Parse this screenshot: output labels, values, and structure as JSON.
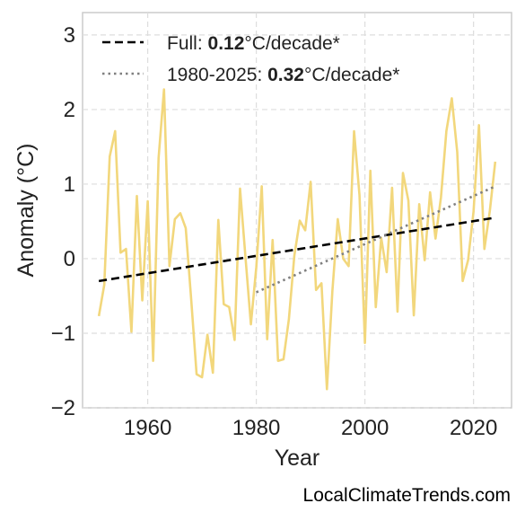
{
  "credit": "LocalClimateTrends.com",
  "chart_data": {
    "type": "line",
    "title": "",
    "xlabel": "Year",
    "ylabel": "Anomaly (°C)",
    "xlim": [
      1948,
      2027
    ],
    "ylim": [
      -2,
      3.3
    ],
    "xticks": [
      1960,
      1980,
      2000,
      2020
    ],
    "yticks": [
      -2,
      -1,
      0,
      1,
      2,
      3
    ],
    "grid": true,
    "legend_position": "top-left",
    "colors": {
      "anomaly": "#f2d77c",
      "full_trend": "#000000",
      "recent_trend": "#808080"
    },
    "series": [
      {
        "type": "line",
        "x": [
          1951,
          1952,
          1953,
          1954,
          1955,
          1956,
          1957,
          1958,
          1959,
          1960,
          1961,
          1962,
          1963,
          1964,
          1965,
          1966,
          1967,
          1968,
          1969,
          1970,
          1971,
          1972,
          1973,
          1974,
          1975,
          1976,
          1977,
          1978,
          1979,
          1980,
          1981,
          1982,
          1983,
          1984,
          1985,
          1986,
          1987,
          1988,
          1989,
          1990,
          1991,
          1992,
          1993,
          1994,
          1995,
          1996,
          1997,
          1998,
          1999,
          2000,
          2001,
          2002,
          2003,
          2004,
          2005,
          2006,
          2007,
          2008,
          2009,
          2010,
          2011,
          2012,
          2013,
          2014,
          2015,
          2016,
          2017,
          2018,
          2019,
          2020,
          2021,
          2022,
          2023,
          2024
        ],
        "y": [
          -0.77,
          -0.35,
          1.37,
          1.71,
          0.08,
          0.13,
          -0.98,
          0.84,
          -0.56,
          0.77,
          -1.37,
          1.35,
          2.27,
          -0.1,
          0.53,
          0.61,
          0.41,
          -0.54,
          -1.55,
          -1.59,
          -1.02,
          -1.53,
          0.52,
          -0.61,
          -0.65,
          -1.09,
          0.94,
          0.02,
          -0.88,
          -0.11,
          0.97,
          -1.08,
          0.25,
          -1.37,
          -1.35,
          -0.81,
          0.04,
          0.51,
          0.38,
          1.03,
          -0.42,
          -0.33,
          -1.75,
          -0.44,
          0.53,
          0.0,
          -0.1,
          1.71,
          0.85,
          -1.13,
          1.18,
          -0.65,
          0.28,
          -0.18,
          0.95,
          -0.71,
          1.15,
          0.78,
          -0.76,
          0.73,
          -0.02,
          0.89,
          0.27,
          0.82,
          1.71,
          2.15,
          1.43,
          -0.3,
          -0.02,
          0.63,
          1.79,
          0.13,
          0.64,
          1.3
        ]
      },
      {
        "name": "Full",
        "type": "trend",
        "x": [
          1951,
          2024
        ],
        "y": [
          -0.3,
          0.55
        ],
        "rate": "0.12",
        "unit": "°C/decade*"
      },
      {
        "name": "1980-2025",
        "type": "trend",
        "x": [
          1980,
          2024
        ],
        "y": [
          -0.45,
          0.97
        ],
        "rate": "0.32",
        "unit": "°C/decade*"
      }
    ]
  }
}
